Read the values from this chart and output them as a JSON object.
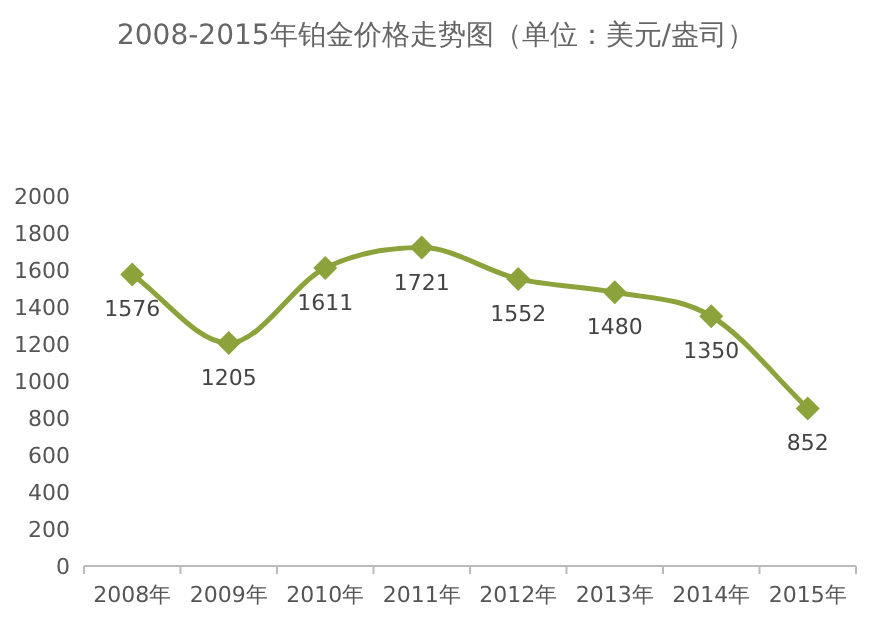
{
  "chart_data": {
    "type": "line",
    "title": "2008-2015年铂金价格走势图（单位：美元/盎司）",
    "categories": [
      "2008年",
      "2009年",
      "2010年",
      "2011年",
      "2012年",
      "2013年",
      "2014年",
      "2015年"
    ],
    "values": [
      1576,
      1205,
      1611,
      1721,
      1552,
      1480,
      1350,
      852
    ],
    "color": "#8ca33c",
    "ylim": [
      0,
      2000
    ],
    "yticks": [
      0,
      200,
      400,
      600,
      800,
      1000,
      1200,
      1400,
      1600,
      1800,
      2000
    ],
    "marker": "diamond",
    "data_labels": true
  }
}
